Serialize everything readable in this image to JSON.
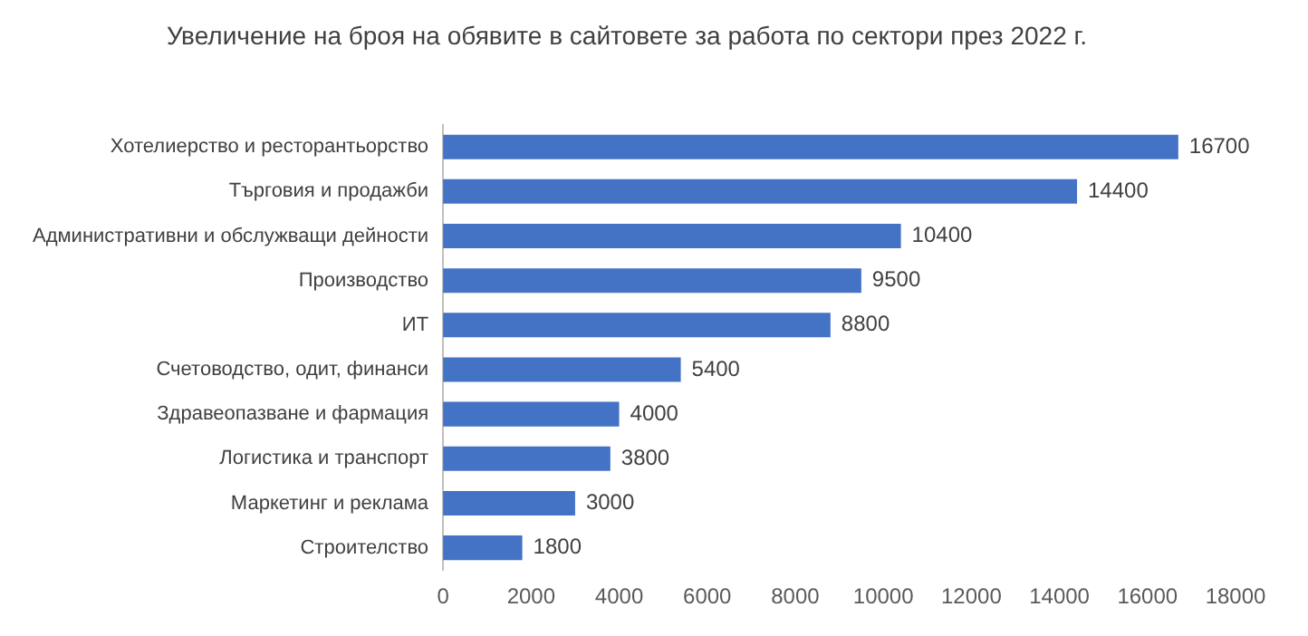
{
  "chart_data": {
    "type": "bar",
    "orientation": "horizontal",
    "title": "Увеличение на броя на обявите в сайтовете за работа по сектори през 2022 г.",
    "categories": [
      "Хотелиерство и ресторантьорство",
      "Търговия и продажби",
      "Административни и обслужващи дейности",
      "Производство",
      "ИТ",
      "Счетоводство, одит, финанси",
      "Здравеопазване и фармация",
      "Логистика и транспорт",
      "Маркетинг и реклама",
      "Строителство"
    ],
    "values": [
      16700,
      14400,
      10400,
      9500,
      8800,
      5400,
      4000,
      3800,
      3000,
      1800
    ],
    "color": "#4472c4",
    "xlim": [
      0,
      18000
    ],
    "xticks": [
      0,
      2000,
      4000,
      6000,
      8000,
      10000,
      12000,
      14000,
      16000,
      18000
    ],
    "grid": false,
    "data_labels": true,
    "legend": false
  }
}
